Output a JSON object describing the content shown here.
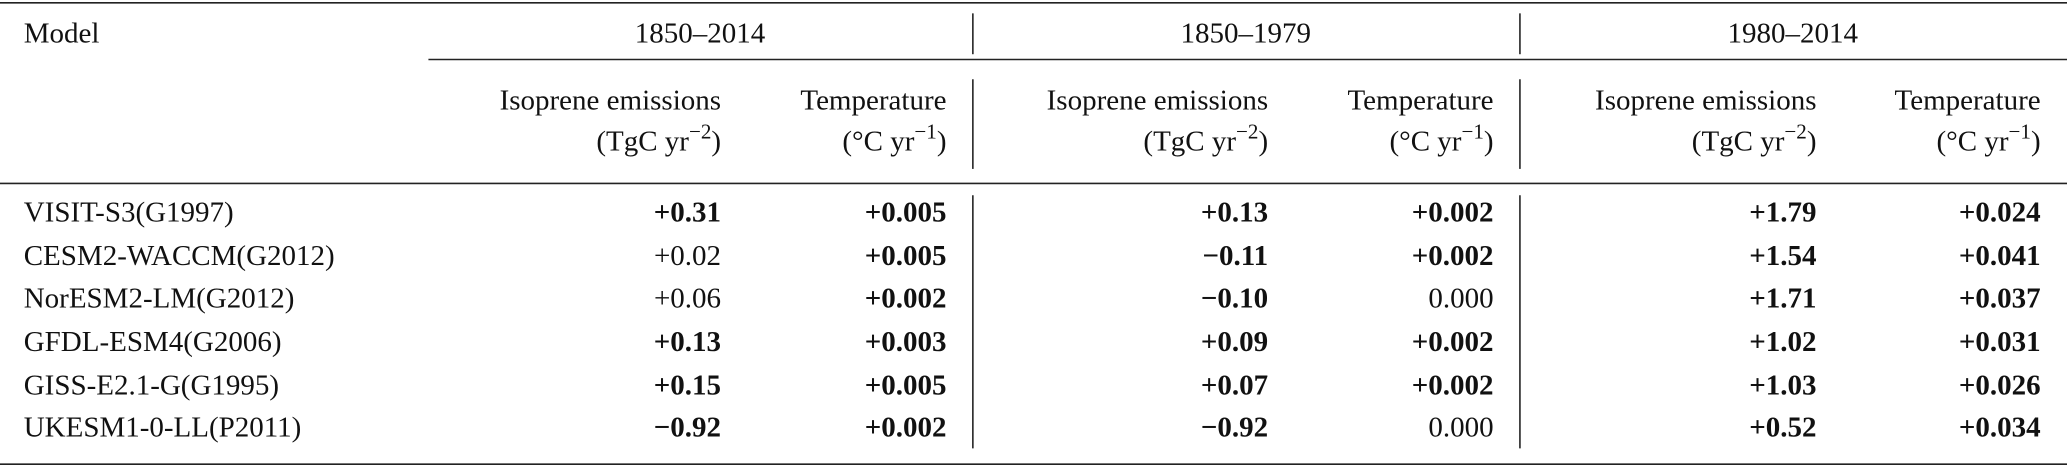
{
  "table": {
    "header": {
      "model": "Model",
      "groups": [
        "1850–2014",
        "1850–1979",
        "1980–2014"
      ],
      "columns": [
        {
          "label": "Isoprene emissions",
          "unit": [
            "(TgC yr",
            "−2",
            ")"
          ]
        },
        {
          "label": "Temperature",
          "unit": [
            "(°C yr",
            "−1",
            ")"
          ]
        },
        {
          "label": "Isoprene emissions",
          "unit": [
            "(TgC yr",
            "−2",
            ")"
          ]
        },
        {
          "label": "Temperature",
          "unit": [
            "(°C yr",
            "−1",
            ")"
          ]
        },
        {
          "label": "Isoprene emissions",
          "unit": [
            "(TgC yr",
            "−2",
            ")"
          ]
        },
        {
          "label": "Temperature",
          "unit": [
            "(°C yr",
            "−1",
            ")"
          ]
        }
      ]
    },
    "rows": [
      {
        "model": "VISIT-S3(G1997)",
        "cells": [
          "+0.31",
          "+0.005",
          "+0.13",
          "+0.002",
          "+1.79",
          "+0.024"
        ],
        "bold": [
          true,
          true,
          true,
          true,
          true,
          true
        ]
      },
      {
        "model": "CESM2-WACCM(G2012)",
        "cells": [
          "+0.02",
          "+0.005",
          "−0.11",
          "+0.002",
          "+1.54",
          "+0.041"
        ],
        "bold": [
          false,
          true,
          true,
          true,
          true,
          true
        ]
      },
      {
        "model": "NorESM2-LM(G2012)",
        "cells": [
          "+0.06",
          "+0.002",
          "−0.10",
          "0.000",
          "+1.71",
          "+0.037"
        ],
        "bold": [
          false,
          true,
          true,
          false,
          true,
          true
        ]
      },
      {
        "model": "GFDL-ESM4(G2006)",
        "cells": [
          "+0.13",
          "+0.003",
          "+0.09",
          "+0.002",
          "+1.02",
          "+0.031"
        ],
        "bold": [
          true,
          true,
          true,
          true,
          true,
          true
        ]
      },
      {
        "model": "GISS-E2.1-G(G1995)",
        "cells": [
          "+0.15",
          "+0.005",
          "+0.07",
          "+0.002",
          "+1.03",
          "+0.026"
        ],
        "bold": [
          true,
          true,
          true,
          true,
          true,
          true
        ]
      },
      {
        "model": "UKESM1-0-LL(P2011)",
        "cells": [
          "−0.92",
          "+0.002",
          "−0.92",
          "0.000",
          "+0.52",
          "+0.034"
        ],
        "bold": [
          true,
          true,
          true,
          false,
          true,
          true
        ]
      }
    ]
  }
}
